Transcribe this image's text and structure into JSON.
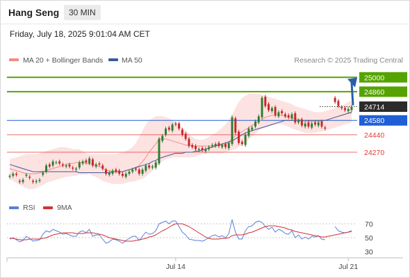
{
  "header": {
    "instrument": "Hang Seng",
    "timeframe": "30 MIN",
    "datetime": "Friday, July 18, 2025 9:01:04 AM CET"
  },
  "legend": {
    "ma20_label": "MA 20 + Bollinger Bands",
    "ma20_color": "#f28b82",
    "ma50_label": "MA 50",
    "ma50_color": "#3c5a99",
    "credit": "Research © 2025 Trading Central"
  },
  "colors": {
    "bull": "#2e7d32",
    "bear": "#c62828",
    "target": "#55a300",
    "pivot": "#1f5fd6",
    "support": "#e53935",
    "band": "#fde2e2",
    "arrow": "#2b5fa6",
    "rsi": "#5b7fd6",
    "rsi_ma": "#d32f2f"
  },
  "chart_data": [
    {
      "type": "candlestick",
      "y_range": [
        23870,
        25090
      ],
      "levels": [
        {
          "value": 25000,
          "label": "25000",
          "kind": "target"
        },
        {
          "value": 24860,
          "label": "24860",
          "kind": "target"
        },
        {
          "value": 24714,
          "label": "24714",
          "kind": "last"
        },
        {
          "value": 24580,
          "label": "24580",
          "kind": "pivot"
        },
        {
          "value": 24440,
          "label": "24440",
          "kind": "support"
        },
        {
          "value": 24270,
          "label": "24270",
          "kind": "support"
        }
      ],
      "x_labels": [
        {
          "index": 50,
          "label": "Jul 14"
        },
        {
          "index": 102,
          "label": "Jul 21"
        }
      ],
      "x_count": 104,
      "close": [
        24040,
        24060,
        24050,
        23980,
        24000,
        24050,
        24020,
        23980,
        23990,
        24000,
        24070,
        24140,
        24130,
        24180,
        24170,
        24160,
        24140,
        24140,
        24130,
        24110,
        24110,
        24170,
        24180,
        24170,
        24210,
        24140,
        24150,
        24150,
        24110,
        24060,
        24070,
        24090,
        24080,
        24060,
        24040,
        24060,
        24080,
        24100,
        24100,
        24060,
        24100,
        24140,
        24120,
        24130,
        24170,
        24400,
        24430,
        24500,
        24490,
        24540,
        24540,
        24500,
        24440,
        24400,
        24330,
        24320,
        24300,
        24300,
        24290,
        24300,
        24320,
        24340,
        24350,
        24330,
        24340,
        24320,
        24360,
        24610,
        24460,
        24360,
        24350,
        24440,
        24500,
        24510,
        24570,
        24620,
        24800,
        24720,
        24680,
        24700,
        24630,
        24660,
        24650,
        24620,
        24610,
        24640,
        24560,
        24580,
        24530,
        24550,
        24520,
        24550,
        24540,
        24560,
        24520,
        24500,
        null,
        null,
        24760,
        24720,
        24700,
        24680,
        24690,
        24714
      ],
      "open": [
        24030,
        24040,
        24060,
        23990,
        23980,
        24040,
        24030,
        23990,
        23980,
        23990,
        24050,
        24080,
        24150,
        24140,
        24170,
        24180,
        24150,
        24130,
        24150,
        24120,
        24100,
        24120,
        24160,
        24190,
        24160,
        24200,
        24130,
        24160,
        24140,
        24100,
        24050,
        24060,
        24100,
        24090,
        24060,
        24030,
        24060,
        24080,
        24110,
        24100,
        24060,
        24090,
        24140,
        24120,
        24120,
        24160,
        24380,
        24440,
        24510,
        24480,
        24550,
        24550,
        24490,
        24450,
        24400,
        24340,
        24330,
        24290,
        24310,
        24280,
        24300,
        24330,
        24330,
        24360,
        24320,
        24350,
        24310,
        24350,
        24600,
        24470,
        24370,
        24340,
        24430,
        24490,
        24520,
        24560,
        24610,
        24810,
        24740,
        24670,
        24710,
        24620,
        24670,
        24640,
        24630,
        24600,
        24650,
        24560,
        24590,
        24520,
        24560,
        24510,
        24560,
        24530,
        24570,
        24510,
        null,
        null,
        24800,
        24770,
        24710,
        24700,
        24670,
        24680
      ],
      "ma20": [
        24110,
        24100,
        24090,
        24080,
        24070,
        24060,
        24060,
        24060,
        24060,
        24070,
        24080,
        24090,
        24100,
        24110,
        24120,
        24130,
        24140,
        24150,
        24160,
        24160,
        24170,
        24170,
        24170,
        24160,
        24160,
        24150,
        24140,
        24130,
        24110,
        24100,
        24090,
        24080,
        24080,
        24080,
        24080,
        24090,
        24100,
        24110,
        24120,
        24140,
        24180,
        24220,
        24270,
        24310,
        24350,
        24400,
        24400,
        24400,
        24390,
        24380,
        24370,
        24360,
        24350,
        24340,
        24340,
        24330,
        24330,
        24330,
        24330,
        24330,
        24330,
        24330,
        24340,
        24340,
        24340,
        24350,
        24370,
        24400,
        24430,
        24450,
        24470,
        24490,
        24510,
        24530,
        24550,
        24570,
        24590,
        24610,
        24620,
        24630,
        24630,
        24630,
        24630,
        24620,
        24610,
        24600,
        24600,
        24590,
        24580,
        24570,
        24570,
        24570,
        24570,
        24570,
        24570,
        24580,
        24590,
        24600,
        24610,
        24620,
        24630,
        24640,
        24650,
        24650
      ],
      "ma50": [
        24150,
        24140,
        24130,
        24120,
        24110,
        24100,
        24090,
        24080,
        24080,
        24080,
        24080,
        24080,
        24080,
        24080,
        24080,
        24080,
        24080,
        24080,
        24080,
        24080,
        24080,
        24070,
        24070,
        24070,
        24070,
        24070,
        24070,
        24070,
        24070,
        24070,
        24070,
        24080,
        24080,
        24080,
        24080,
        24090,
        24100,
        24110,
        24120,
        24130,
        24140,
        24150,
        24160,
        24180,
        24190,
        24210,
        24220,
        24230,
        24240,
        24250,
        24260,
        24260,
        24260,
        24270,
        24270,
        24270,
        24280,
        24280,
        24290,
        24300,
        24310,
        24320,
        24330,
        24340,
        24350,
        24360,
        24370,
        24380,
        24400,
        24420,
        24440,
        24460,
        24470,
        24480,
        24490,
        24500,
        24510,
        24520,
        24530,
        24540,
        24550,
        24560,
        24570,
        24580,
        24580,
        24580,
        24580,
        24580,
        24580,
        24580,
        24580,
        24580,
        24580,
        24580,
        24580,
        24580,
        24590,
        24600,
        24610,
        24620,
        24630,
        24640,
        24650,
        24660
      ],
      "band_upper": [
        24200,
        24210,
        24220,
        24230,
        24240,
        24250,
        24250,
        24250,
        24250,
        24260,
        24270,
        24280,
        24290,
        24300,
        24310,
        24320,
        24320,
        24320,
        24310,
        24300,
        24300,
        24300,
        24280,
        24260,
        24250,
        24250,
        24250,
        24250,
        24250,
        24250,
        24250,
        24250,
        24250,
        24260,
        24270,
        24280,
        24300,
        24320,
        24360,
        24420,
        24480,
        24540,
        24580,
        24600,
        24620,
        24620,
        24620,
        24610,
        24600,
        24580,
        24560,
        24540,
        24510,
        24480,
        24450,
        24420,
        24400,
        24390,
        24390,
        24400,
        24420,
        24440,
        24460,
        24480,
        24510,
        24540,
        24580,
        24640,
        24700,
        24760,
        24800,
        24820,
        24840,
        24840,
        24840,
        24840,
        24830,
        24820,
        24810,
        24800,
        24790,
        24780,
        24770,
        24760,
        24750,
        24740,
        24720,
        24710,
        24700,
        24690,
        24680,
        24670,
        24660,
        24660,
        24660,
        24670,
        24680,
        24690,
        24700,
        24710,
        24720,
        24740,
        24760,
        24770
      ],
      "band_lower": [
        24000,
        23990,
        23970,
        23950,
        23940,
        23920,
        23910,
        23910,
        23920,
        23940,
        23950,
        23970,
        23980,
        23990,
        24000,
        24010,
        24020,
        24030,
        24030,
        24040,
        24040,
        24050,
        24050,
        24050,
        24060,
        24040,
        24030,
        24010,
        23990,
        23980,
        23970,
        23960,
        23960,
        23960,
        23960,
        23970,
        23980,
        23980,
        23990,
        24000,
        24010,
        24030,
        24060,
        24090,
        24120,
        24160,
        24180,
        24200,
        24210,
        24220,
        24220,
        24220,
        24220,
        24220,
        24220,
        24220,
        24230,
        24240,
        24250,
        24250,
        24260,
        24260,
        24260,
        24260,
        24260,
        24270,
        24280,
        24290,
        24300,
        24320,
        24340,
        24360,
        24390,
        24420,
        24450,
        24480,
        24500,
        24510,
        24520,
        24530,
        24540,
        24540,
        24540,
        24530,
        24520,
        24500,
        24490,
        24480,
        24470,
        24460,
        24460,
        24460,
        24460,
        24470,
        24470,
        24480,
        24490,
        24500,
        24510,
        24520,
        24530,
        24540,
        24550,
        24560
      ]
    },
    {
      "type": "line",
      "series_names": [
        "RSI",
        "9MA"
      ],
      "y_range": [
        20,
        80
      ],
      "ticks": [
        {
          "value": 70,
          "label": "70"
        },
        {
          "value": 50,
          "label": "50"
        },
        {
          "value": 30,
          "label": "30"
        }
      ],
      "rsi": [
        48,
        50,
        47,
        44,
        46,
        52,
        49,
        45,
        46,
        47,
        55,
        60,
        58,
        62,
        60,
        58,
        55,
        56,
        54,
        52,
        52,
        58,
        60,
        57,
        62,
        52,
        54,
        54,
        48,
        42,
        44,
        48,
        47,
        45,
        42,
        46,
        49,
        52,
        52,
        46,
        52,
        58,
        55,
        56,
        60,
        70,
        72,
        74,
        70,
        74,
        74,
        66,
        58,
        54,
        48,
        47,
        46,
        46,
        45,
        47,
        50,
        53,
        54,
        51,
        53,
        50,
        56,
        76,
        58,
        48,
        48,
        60,
        66,
        67,
        72,
        74,
        72,
        66,
        62,
        65,
        58,
        62,
        60,
        56,
        55,
        60,
        50,
        54,
        48,
        51,
        48,
        52,
        51,
        53,
        48,
        47,
        null,
        null,
        66,
        60,
        58,
        57,
        58,
        60
      ],
      "rsi_ma": [
        49,
        49,
        48,
        47,
        47,
        47,
        48,
        48,
        48,
        48,
        49,
        50,
        52,
        54,
        55,
        56,
        57,
        57,
        57,
        57,
        56,
        56,
        56,
        57,
        57,
        57,
        56,
        55,
        54,
        52,
        50,
        49,
        48,
        47,
        46,
        45,
        45,
        45,
        46,
        47,
        48,
        49,
        51,
        52,
        54,
        57,
        60,
        62,
        65,
        68,
        70,
        70,
        70,
        68,
        66,
        63,
        60,
        57,
        54,
        51,
        49,
        48,
        48,
        48,
        49,
        49,
        50,
        53,
        54,
        54,
        54,
        55,
        57,
        58,
        60,
        62,
        64,
        66,
        67,
        67,
        67,
        66,
        65,
        64,
        62,
        61,
        59,
        58,
        57,
        56,
        55,
        54,
        53,
        52,
        51,
        51,
        52,
        53,
        54,
        55,
        56,
        57,
        58,
        59
      ]
    }
  ]
}
